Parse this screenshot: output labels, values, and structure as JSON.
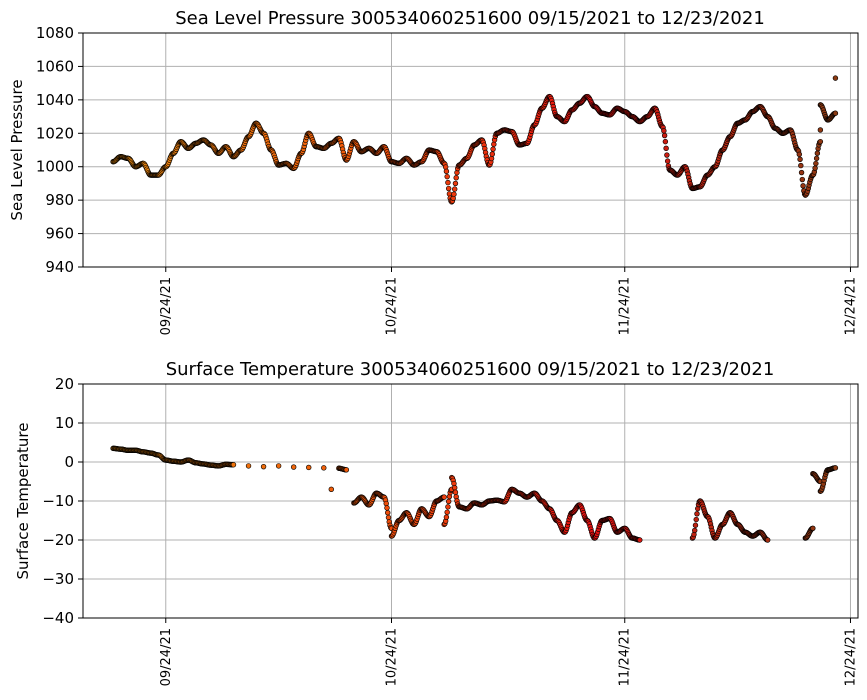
{
  "chart_data": [
    {
      "type": "scatter",
      "title": "Sea Level Pressure 300534060251600  09/15/2021 to 12/23/2021",
      "xlabel": "",
      "ylabel": "Sea Level Pressure",
      "xlim": [
        "2021-09-13",
        "12/25/2021"
      ],
      "ylim": [
        940,
        1080
      ],
      "yticks": [
        940,
        960,
        980,
        1000,
        1020,
        1040,
        1060,
        1080
      ],
      "xticks": [
        "09/24/21",
        "10/24/21",
        "11/24/21",
        "12/24/21"
      ],
      "grid": true,
      "marker_edge_color": "#000000",
      "colormap_stops": [
        "#f09010",
        "#f05a0a",
        "#e81010",
        "#8a3a12"
      ],
      "series": [
        {
          "color_by": "time",
          "points": [
            [
              "2021-09-17",
              1003
            ],
            [
              "2021-09-18",
              1006
            ],
            [
              "2021-09-19",
              1005
            ],
            [
              "2021-09-20",
              1000
            ],
            [
              "2021-09-21",
              1002
            ],
            [
              "2021-09-22",
              995
            ],
            [
              "2021-09-23",
              995
            ],
            [
              "2021-09-24",
              1000
            ],
            [
              "2021-09-25",
              1008
            ],
            [
              "2021-09-26",
              1015
            ],
            [
              "2021-09-27",
              1011
            ],
            [
              "2021-09-28",
              1014
            ],
            [
              "2021-09-29",
              1016
            ],
            [
              "2021-09-30",
              1013
            ],
            [
              "2021-10-01",
              1008
            ],
            [
              "2021-10-02",
              1012
            ],
            [
              "2021-10-03",
              1006
            ],
            [
              "2021-10-04",
              1010
            ],
            [
              "2021-10-05",
              1018
            ],
            [
              "2021-10-06",
              1026
            ],
            [
              "2021-10-07",
              1020
            ],
            [
              "2021-10-08",
              1010
            ],
            [
              "2021-10-09",
              1001
            ],
            [
              "2021-10-10",
              1002
            ],
            [
              "2021-10-11",
              999
            ],
            [
              "2021-10-12",
              1008
            ],
            [
              "2021-10-13",
              1020
            ],
            [
              "2021-10-14",
              1012
            ],
            [
              "2021-10-15",
              1011
            ],
            [
              "2021-10-16",
              1014
            ],
            [
              "2021-10-17",
              1017
            ],
            [
              "2021-10-18",
              1004
            ],
            [
              "2021-10-19",
              1015
            ],
            [
              "2021-10-20",
              1009
            ],
            [
              "2021-10-21",
              1011
            ],
            [
              "2021-10-22",
              1008
            ],
            [
              "2021-10-23",
              1012
            ],
            [
              "2021-10-24",
              1003
            ],
            [
              "2021-10-25",
              1002
            ],
            [
              "2021-10-26",
              1005
            ],
            [
              "2021-10-27",
              1001
            ],
            [
              "2021-10-28",
              1003
            ],
            [
              "2021-10-29",
              1010
            ],
            [
              "2021-10-30",
              1009
            ],
            [
              "2021-10-31",
              1002
            ],
            [
              "2021-11-01",
              979
            ],
            [
              "2021-11-02",
              1001
            ],
            [
              "2021-11-03",
              1005
            ],
            [
              "2021-11-04",
              1013
            ],
            [
              "2021-11-05",
              1016
            ],
            [
              "2021-11-06",
              1001
            ],
            [
              "2021-11-07",
              1020
            ],
            [
              "2021-11-08",
              1022
            ],
            [
              "2021-11-09",
              1021
            ],
            [
              "2021-11-10",
              1013
            ],
            [
              "2021-11-11",
              1014
            ],
            [
              "2021-11-12",
              1025
            ],
            [
              "2021-11-13",
              1035
            ],
            [
              "2021-11-14",
              1042
            ],
            [
              "2021-11-15",
              1030
            ],
            [
              "2021-11-16",
              1027
            ],
            [
              "2021-11-17",
              1034
            ],
            [
              "2021-11-18",
              1038
            ],
            [
              "2021-11-19",
              1042
            ],
            [
              "2021-11-20",
              1036
            ],
            [
              "2021-11-21",
              1032
            ],
            [
              "2021-11-22",
              1031
            ],
            [
              "2021-11-23",
              1035
            ],
            [
              "2021-11-24",
              1033
            ],
            [
              "2021-11-25",
              1030
            ],
            [
              "2021-11-26",
              1027
            ],
            [
              "2021-11-27",
              1030
            ],
            [
              "2021-11-28",
              1035
            ],
            [
              "2021-11-29",
              1024
            ],
            [
              "2021-11-30",
              998
            ],
            [
              "2021-12-01",
              995
            ],
            [
              "2021-12-02",
              1000
            ],
            [
              "2021-12-03",
              987
            ],
            [
              "2021-12-04",
              988
            ],
            [
              "2021-12-05",
              995
            ],
            [
              "2021-12-06",
              1000
            ],
            [
              "2021-12-07",
              1010
            ],
            [
              "2021-12-08",
              1018
            ],
            [
              "2021-12-09",
              1026
            ],
            [
              "2021-12-10",
              1028
            ],
            [
              "2021-12-11",
              1033
            ],
            [
              "2021-12-12",
              1036
            ],
            [
              "2021-12-13",
              1030
            ],
            [
              "2021-12-14",
              1023
            ],
            [
              "2021-12-15",
              1020
            ],
            [
              "2021-12-16",
              1022
            ],
            [
              "2021-12-17",
              1010
            ],
            [
              "2021-12-18",
              983
            ],
            [
              "2021-12-19",
              995
            ],
            [
              "2021-12-20",
              1015
            ],
            [
              "2021-12-20",
              1022
            ],
            [
              "2021-12-20",
              1037
            ],
            [
              "2021-12-21",
              1028
            ],
            [
              "2021-12-22",
              1032
            ],
            [
              "2021-12-22",
              1053
            ]
          ]
        }
      ]
    },
    {
      "type": "scatter",
      "title": "Surface Temperature 300534060251600  09/15/2021 to 12/23/2021",
      "xlabel": "",
      "ylabel": "Surface Temperature",
      "xlim": [
        "2021-09-13",
        "12/25/2021"
      ],
      "ylim": [
        -40,
        20
      ],
      "yticks": [
        -40,
        -30,
        -20,
        -10,
        0,
        10,
        20
      ],
      "xticks": [
        "09/24/21",
        "10/24/21",
        "11/24/21",
        "12/24/21"
      ],
      "grid": true,
      "marker_edge_color": "#000000",
      "colormap_stops": [
        "#f09010",
        "#f05a0a",
        "#e81010",
        "#8a3a12"
      ],
      "series": [
        {
          "color_by": "time",
          "points": [
            [
              "2021-09-17",
              3.5
            ],
            [
              "2021-09-18",
              3.3
            ],
            [
              "2021-09-19",
              3.0
            ],
            [
              "2021-09-20",
              3.0
            ],
            [
              "2021-09-21",
              2.6
            ],
            [
              "2021-09-22",
              2.3
            ],
            [
              "2021-09-23",
              1.8
            ],
            [
              "2021-09-24",
              0.5
            ],
            [
              "2021-09-25",
              0.2
            ],
            [
              "2021-09-26",
              0.0
            ],
            [
              "2021-09-27",
              0.5
            ],
            [
              "2021-09-28",
              -0.2
            ],
            [
              "2021-09-29",
              -0.5
            ],
            [
              "2021-09-30",
              -0.8
            ],
            [
              "2021-10-01",
              -1.0
            ],
            [
              "2021-10-02",
              -0.6
            ],
            [
              "2021-10-03",
              -0.7
            ],
            [
              "2021-10-05",
              -1.0
            ],
            [
              "2021-10-07",
              -1.2
            ],
            [
              "2021-10-09",
              -1.0
            ],
            [
              "2021-10-11",
              -1.3
            ],
            [
              "2021-10-13",
              -1.4
            ],
            [
              "2021-10-15",
              -1.5
            ],
            [
              "2021-10-17",
              -1.6
            ],
            [
              "2021-10-18",
              -2.0
            ],
            [
              "2021-10-16",
              -7.0
            ],
            [
              "2021-10-19",
              -10.5
            ],
            [
              "2021-10-20",
              -9.0
            ],
            [
              "2021-10-21",
              -11.0
            ],
            [
              "2021-10-22",
              -8.0
            ],
            [
              "2021-10-23",
              -9.0
            ],
            [
              "2021-10-24",
              -17.0
            ],
            [
              "2021-10-24",
              -19.0
            ],
            [
              "2021-10-25",
              -15.0
            ],
            [
              "2021-10-26",
              -13.0
            ],
            [
              "2021-10-27",
              -16.0
            ],
            [
              "2021-10-28",
              -12.0
            ],
            [
              "2021-10-29",
              -14.0
            ],
            [
              "2021-10-30",
              -10.0
            ],
            [
              "2021-10-31",
              -9.0
            ],
            [
              "2021-10-31",
              -16.0
            ],
            [
              "2021-11-01",
              -7.0
            ],
            [
              "2021-11-01",
              -4.0
            ],
            [
              "2021-11-02",
              -11.5
            ],
            [
              "2021-11-03",
              -12.0
            ],
            [
              "2021-11-04",
              -10.5
            ],
            [
              "2021-11-05",
              -11.0
            ],
            [
              "2021-11-06",
              -10.0
            ],
            [
              "2021-11-07",
              -9.8
            ],
            [
              "2021-11-08",
              -10.2
            ],
            [
              "2021-11-09",
              -7.0
            ],
            [
              "2021-11-10",
              -8.0
            ],
            [
              "2021-11-11",
              -9.0
            ],
            [
              "2021-11-12",
              -8.0
            ],
            [
              "2021-11-13",
              -10.0
            ],
            [
              "2021-11-14",
              -12.0
            ],
            [
              "2021-11-15",
              -15.0
            ],
            [
              "2021-11-16",
              -18.0
            ],
            [
              "2021-11-17",
              -13.0
            ],
            [
              "2021-11-18",
              -11.0
            ],
            [
              "2021-11-19",
              -15.0
            ],
            [
              "2021-11-20",
              -19.5
            ],
            [
              "2021-11-21",
              -15.0
            ],
            [
              "2021-11-22",
              -14.5
            ],
            [
              "2021-11-23",
              -18.0
            ],
            [
              "2021-11-24",
              -17.0
            ],
            [
              "2021-11-25",
              -19.5
            ],
            [
              "2021-11-26",
              -20.0
            ],
            [
              "2021-12-03",
              -19.5
            ],
            [
              "2021-12-04",
              -10.0
            ],
            [
              "2021-12-05",
              -14.0
            ],
            [
              "2021-12-06",
              -19.5
            ],
            [
              "2021-12-07",
              -16.0
            ],
            [
              "2021-12-08",
              -13.0
            ],
            [
              "2021-12-09",
              -16.0
            ],
            [
              "2021-12-10",
              -18.0
            ],
            [
              "2021-12-11",
              -19.0
            ],
            [
              "2021-12-12",
              -18.0
            ],
            [
              "2021-12-13",
              -20.0
            ],
            [
              "2021-12-18",
              -19.5
            ],
            [
              "2021-12-19",
              -17.0
            ],
            [
              "2021-12-19",
              -3.0
            ],
            [
              "2021-12-20",
              -5.0
            ],
            [
              "2021-12-20",
              -7.5
            ],
            [
              "2021-12-21",
              -2.0
            ],
            [
              "2021-12-22",
              -1.5
            ]
          ]
        }
      ]
    }
  ]
}
